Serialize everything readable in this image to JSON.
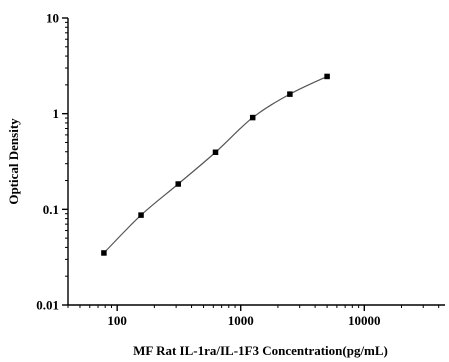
{
  "chart_data": {
    "type": "scatter",
    "title": "",
    "xlabel": "MF Rat IL-1ra/IL-1F3 Concentration(pg/mL)",
    "ylabel": "Optical Density",
    "x_scale": "log",
    "y_scale": "log",
    "xlim": [
      40,
      45000
    ],
    "ylim": [
      0.01,
      10
    ],
    "x_tick_labels": [
      "100",
      "1000",
      "10000"
    ],
    "y_tick_labels": [
      "0.01",
      "0.1",
      "1",
      "10"
    ],
    "grid": false,
    "legend": "none",
    "series": [
      {
        "x": [
          78.1,
          156,
          312,
          625,
          1250,
          2500,
          5000
        ],
        "y": [
          0.035,
          0.087,
          0.184,
          0.395,
          0.91,
          1.6,
          2.45
        ]
      }
    ],
    "fit_curve": true,
    "marker": "square",
    "marker_color": "#000000",
    "curve_color": "#555555"
  }
}
